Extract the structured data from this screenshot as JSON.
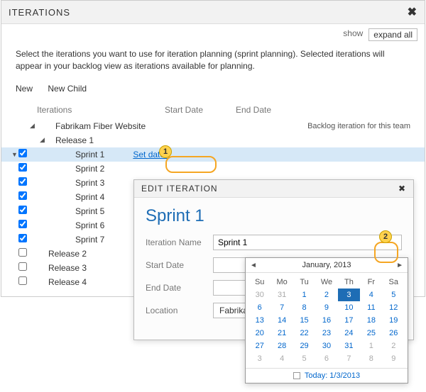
{
  "colors": {
    "accent": "#1e6db5",
    "link": "#0066cc",
    "callout": "#f5a623",
    "row_selected_bg": "#d6e8f7",
    "border": "#bbbbbb"
  },
  "header": {
    "title": "ITERATIONS",
    "close": "✖"
  },
  "subbar": {
    "show": "show",
    "expand_all": "expand all"
  },
  "description": "Select the iterations you want to use for iteration planning (sprint planning). Selected iterations will appear in your backlog view as iterations available for planning.",
  "actions": {
    "new": "New",
    "new_child": "New Child"
  },
  "columns": [
    "Iterations",
    "Start Date",
    "End Date"
  ],
  "backlog_note": "Backlog iteration for this team",
  "set_dates_label": "Set dates",
  "nodes": {
    "root": "Fabrikam Fiber Website",
    "release1": "Release 1",
    "sprints": [
      "Sprint 1",
      "Sprint 2",
      "Sprint 3",
      "Sprint 4",
      "Sprint 5",
      "Sprint 6",
      "Sprint 7"
    ],
    "sprint_checked": [
      true,
      true,
      true,
      true,
      true,
      true,
      true
    ],
    "other_releases": [
      "Release 2",
      "Release 3",
      "Release 4"
    ]
  },
  "popup": {
    "title": "EDIT ITERATION",
    "heading": "Sprint 1",
    "fields": {
      "name_label": "Iteration Name",
      "name_value": "Sprint 1",
      "start_label": "Start Date",
      "start_value": "",
      "end_label": "End Date",
      "end_value": "",
      "location_label": "Location",
      "location_value": "Fabrikam Fi..."
    }
  },
  "calendar": {
    "month_label": "January, 2013",
    "dow": [
      "Su",
      "Mo",
      "Tu",
      "We",
      "Th",
      "Fr",
      "Sa"
    ],
    "leading": [
      30,
      31
    ],
    "days": 31,
    "trailing": [
      1,
      2,
      3,
      4,
      5,
      6,
      7,
      8,
      9
    ],
    "selected_day": 3,
    "today_label": "Today: 1/3/2013"
  },
  "callouts": {
    "one": "1",
    "two": "2"
  }
}
